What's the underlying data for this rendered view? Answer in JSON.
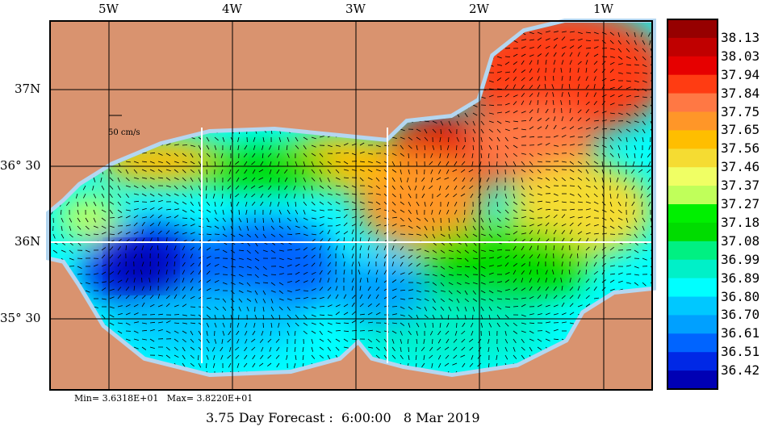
{
  "map": {
    "lon_labels": [
      "5W",
      "4W",
      "3W",
      "2W",
      "1W"
    ],
    "lat_labels": [
      "37N",
      "36° 30",
      "36N",
      "35° 30"
    ],
    "scale_label": "50 cm/s",
    "stats": "Min= 3.6318E+01   Max= 3.8220E+01",
    "title": "3.75 Day Forecast :  6:00:00   8 Mar 2019",
    "land_color": "#d9936f",
    "coast_color": "#b4d6f0"
  },
  "colorbar": {
    "labels": [
      "38.13",
      "38.03",
      "37.94",
      "37.84",
      "37.75",
      "37.65",
      "37.56",
      "37.46",
      "37.37",
      "37.27",
      "37.18",
      "37.08",
      "36.99",
      "36.89",
      "36.80",
      "36.70",
      "36.61",
      "36.51",
      "36.42"
    ],
    "colors": [
      "#960000",
      "#c00000",
      "#e60000",
      "#ff3c12",
      "#ff7844",
      "#ff9628",
      "#ffbe00",
      "#f5dc32",
      "#f0ff64",
      "#c0ff5a",
      "#00f000",
      "#00dc00",
      "#00f082",
      "#00f0c8",
      "#00ffff",
      "#00c8ff",
      "#00a0ff",
      "#0064ff",
      "#0028e6",
      "#0000b4"
    ]
  }
}
